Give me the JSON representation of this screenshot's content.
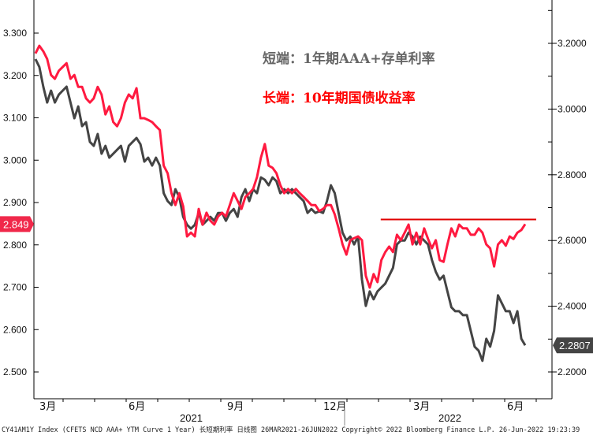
{
  "chart_data": {
    "type": "line",
    "title": "",
    "date_range": [
      "2021-03-26",
      "2022-06-26"
    ],
    "x_tick_labels": [
      "3月",
      "6月",
      "9月",
      "12月",
      "3月",
      "6月"
    ],
    "year_labels": [
      "2021",
      "2022"
    ],
    "legend": [
      {
        "text": "短端：1年期AAA+存单利率",
        "color": "#666666"
      },
      {
        "text": "长端：10年期国债收益率",
        "color": "#ff0000"
      }
    ],
    "left_axis": {
      "range": [
        2.48,
        3.34
      ],
      "ticks": [
        "2.500",
        "2.600",
        "2.700",
        "2.800",
        "2.900",
        "3.000",
        "3.100",
        "3.200",
        "3.300"
      ]
    },
    "right_axis": {
      "range": [
        2.12,
        3.33
      ],
      "ticks": [
        "2.2000",
        "2.4000",
        "2.6000",
        "2.8000",
        "3.0000",
        "3.2000"
      ]
    },
    "grid": false,
    "series": [
      {
        "name": "长端：10年期国债收益率",
        "axis": "left",
        "color": "#ff1a40",
        "last_label": "2.849",
        "values": [
          3.252,
          3.27,
          3.257,
          3.239,
          3.201,
          3.192,
          3.211,
          3.22,
          3.229,
          3.192,
          3.201,
          3.173,
          3.173,
          3.146,
          3.136,
          3.146,
          3.173,
          3.155,
          3.108,
          3.127,
          3.09,
          3.08,
          3.099,
          3.136,
          3.155,
          3.146,
          3.17,
          3.099,
          3.099,
          3.095,
          3.09,
          3.08,
          3.071,
          2.987,
          2.969,
          2.922,
          2.894,
          2.922,
          2.891,
          2.82,
          2.829,
          2.82,
          2.885,
          2.848,
          2.876,
          2.857,
          2.848,
          2.867,
          2.876,
          2.867,
          2.894,
          2.922,
          2.904,
          2.885,
          2.913,
          2.922,
          2.932,
          2.96,
          3.006,
          3.038,
          2.987,
          2.982,
          2.969,
          2.941,
          2.922,
          2.932,
          2.922,
          2.932,
          2.922,
          2.913,
          2.904,
          2.894,
          2.894,
          2.88,
          2.885,
          2.894,
          2.894,
          2.872,
          2.839,
          2.801,
          2.777,
          2.811,
          2.816,
          2.82,
          2.811,
          2.727,
          2.699,
          2.731,
          2.712,
          2.764,
          2.783,
          2.796,
          2.783,
          2.824,
          2.811,
          2.829,
          2.848,
          2.801,
          2.829,
          2.801,
          2.839,
          2.814,
          2.792,
          2.811,
          2.764,
          2.76,
          2.801,
          2.839,
          2.82,
          2.848,
          2.839,
          2.839,
          2.824,
          2.824,
          2.839,
          2.829,
          2.801,
          2.792,
          2.749,
          2.801,
          2.811,
          2.798,
          2.82,
          2.814,
          2.829,
          2.835,
          2.849
        ]
      },
      {
        "name": "短端：1年期AAA+存单利率",
        "axis": "right",
        "color": "#444444",
        "last_label": "2.2807",
        "values": [
          3.152,
          3.128,
          3.068,
          3.02,
          3.056,
          3.02,
          3.044,
          3.056,
          3.068,
          3.02,
          2.972,
          3.008,
          2.948,
          2.96,
          2.9,
          2.888,
          2.924,
          2.864,
          2.888,
          2.852,
          2.864,
          2.876,
          2.888,
          2.84,
          2.888,
          2.9,
          2.912,
          2.893,
          2.84,
          2.852,
          2.828,
          2.852,
          2.828,
          2.744,
          2.72,
          2.708,
          2.756,
          2.732,
          2.672,
          2.648,
          2.636,
          2.648,
          2.684,
          2.648,
          2.66,
          2.672,
          2.66,
          2.684,
          2.684,
          2.66,
          2.684,
          2.696,
          2.672,
          2.732,
          2.756,
          2.72,
          2.756,
          2.744,
          2.792,
          2.785,
          2.768,
          2.792,
          2.78,
          2.744,
          2.756,
          2.744,
          2.756,
          2.744,
          2.732,
          2.72,
          2.684,
          2.696,
          2.684,
          2.689,
          2.684,
          2.72,
          2.768,
          2.744,
          2.684,
          2.624,
          2.6,
          2.612,
          2.588,
          2.612,
          2.481,
          2.401,
          2.445,
          2.421,
          2.445,
          2.457,
          2.469,
          2.493,
          2.517,
          2.588,
          2.6,
          2.6,
          2.624,
          2.612,
          2.588,
          2.612,
          2.6,
          2.588,
          2.541,
          2.505,
          2.481,
          2.493,
          2.445,
          2.397,
          2.385,
          2.385,
          2.373,
          2.373,
          2.325,
          2.277,
          2.265,
          2.234,
          2.301,
          2.277,
          2.325,
          2.433,
          2.409,
          2.385,
          2.385,
          2.349,
          2.385,
          2.301,
          2.281
        ]
      }
    ],
    "annotations": [
      {
        "type": "hline",
        "axis": "left",
        "value": 2.86,
        "color": "#e00000",
        "from_fraction_of_series": 0.705
      }
    ]
  },
  "footer": "CY41AM1Y Index (CFETS NCD AAA+ YTM Curve 1 Year) 长短期利率  日线图 26MAR2021-26JUN2022  Copyright© 2022 Bloomberg Finance L.P.   26-Jun-2022 19:23:39"
}
